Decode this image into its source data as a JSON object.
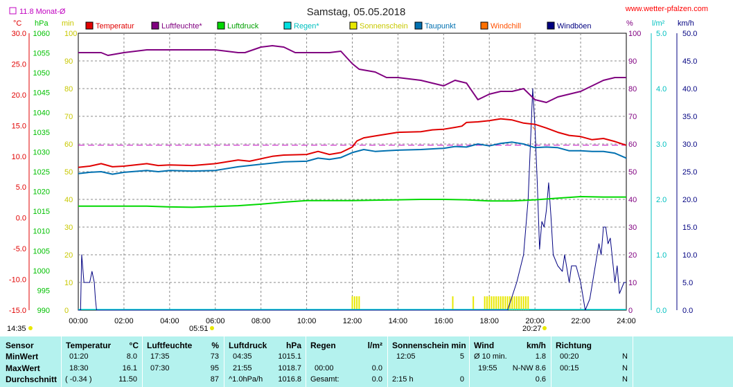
{
  "header": {
    "title": "Samstag, 05.05.2018",
    "website": "www.wetter-pfalzen.com",
    "month_avg": "11.8 Monat-Ø"
  },
  "axis_units": {
    "temperature": "°C",
    "pressure": "hPa",
    "sun": "min",
    "humidity": "%",
    "rain": "l/m²",
    "wind": "km/h"
  },
  "sun_times": {
    "sunrise": "05:51",
    "sunset": "20:27",
    "now": "14:35"
  },
  "colors": {
    "temperature": "#e00000",
    "humidity": "#800080",
    "pressure": "#00d800",
    "rain": "#00e0e0",
    "sunshine": "#e8e800",
    "dewpoint": "#0070b0",
    "windchill": "#ff7000",
    "gusts": "#000080",
    "avg_line": "#c000c0"
  },
  "chart_data": {
    "type": "line",
    "x_ticks": [
      "00:00",
      "02:00",
      "04:00",
      "06:00",
      "08:00",
      "10:00",
      "12:00",
      "14:00",
      "16:00",
      "18:00",
      "20:00",
      "22:00",
      "24:00"
    ],
    "xlim": [
      0,
      24
    ],
    "axes": {
      "temperature": {
        "unit": "°C",
        "ylim": [
          -15,
          30
        ],
        "ticks": [
          "30.0",
          "25.0",
          "20.0",
          "15.0",
          "10.0",
          "5.0",
          "0.0",
          "-5.0",
          "-10.0",
          "-15.0"
        ]
      },
      "pressure": {
        "unit": "hPa",
        "ylim": [
          990,
          1060
        ],
        "ticks": [
          "1060",
          "1055",
          "1050",
          "1045",
          "1040",
          "1035",
          "1030",
          "1025",
          "1020",
          "1015",
          "1010",
          "1005",
          "1000",
          "995",
          "990"
        ]
      },
      "sun": {
        "unit": "min",
        "ylim": [
          0,
          100
        ],
        "ticks": [
          "100",
          "90",
          "80",
          "70",
          "60",
          "50",
          "40",
          "30",
          "20",
          "10",
          "0"
        ]
      },
      "humidity": {
        "unit": "%",
        "ylim": [
          0,
          100
        ],
        "ticks": [
          "100",
          "90",
          "80",
          "70",
          "60",
          "50",
          "40",
          "30",
          "20",
          "10",
          "0"
        ]
      },
      "rain": {
        "unit": "l/m²",
        "ylim": [
          0,
          5
        ],
        "ticks": [
          "5.0",
          "4.0",
          "3.0",
          "2.0",
          "1.0",
          "0.0"
        ]
      },
      "wind": {
        "unit": "km/h",
        "ylim": [
          0,
          50
        ],
        "ticks": [
          "50.0",
          "45.0",
          "40.0",
          "35.0",
          "30.0",
          "25.0",
          "20.0",
          "15.0",
          "10.0",
          "5.0",
          "0.0"
        ]
      }
    },
    "legend": [
      "Temperatur",
      "Luftfeuchte*",
      "Luftdruck",
      "Regen*",
      "Sonnenschein",
      "Taupunkt",
      "Windchill",
      "Windböen"
    ],
    "month_avg_temperature": 11.8,
    "series": [
      {
        "name": "Temperatur",
        "axis": "temperature",
        "x": [
          0,
          0.5,
          1,
          1.5,
          2,
          3,
          3.5,
          4,
          5,
          6,
          7,
          7.5,
          8,
          8.5,
          9,
          10,
          10.5,
          11,
          11.5,
          12,
          12.2,
          12.5,
          13,
          13.5,
          14,
          15,
          15.5,
          16,
          16.5,
          16.8,
          17,
          17.5,
          18,
          18.5,
          19,
          19.5,
          20,
          20.5,
          21,
          21.5,
          22,
          22.5,
          23,
          23.5,
          24
        ],
        "y": [
          8.2,
          8.4,
          8.8,
          8.3,
          8.4,
          8.8,
          8.5,
          8.6,
          8.5,
          8.8,
          9.4,
          9.2,
          9.6,
          10.0,
          10.2,
          10.3,
          10.8,
          10.3,
          10.6,
          11.5,
          12.5,
          13.0,
          13.3,
          13.6,
          13.9,
          14.0,
          14.3,
          14.4,
          14.7,
          14.9,
          15.5,
          15.6,
          15.8,
          16.1,
          15.9,
          15.4,
          15.2,
          14.6,
          13.9,
          13.4,
          13.2,
          12.7,
          12.9,
          12.4,
          11.8
        ]
      },
      {
        "name": "Luftfeuchte*",
        "axis": "humidity",
        "x": [
          0,
          1,
          1.3,
          2,
          3,
          4,
          5,
          6,
          7,
          7.3,
          8,
          8.5,
          9,
          9.5,
          10,
          11,
          11.5,
          12,
          12.3,
          13,
          13.5,
          14,
          15,
          16,
          16.5,
          17,
          17.5,
          18,
          18.5,
          19,
          19.5,
          20,
          20.5,
          21,
          21.5,
          22,
          22.5,
          23,
          23.5,
          24
        ],
        "y": [
          93,
          93,
          92,
          93,
          94,
          94,
          94,
          94,
          93,
          93,
          95,
          95.5,
          95,
          93,
          93,
          93,
          93.5,
          89,
          87,
          86,
          84,
          84,
          83,
          81,
          83,
          82,
          76,
          78,
          79,
          79,
          80,
          76,
          75,
          77,
          78,
          79,
          81,
          83,
          84,
          84
        ]
      },
      {
        "name": "Luftdruck",
        "axis": "pressure",
        "x": [
          0,
          1,
          2,
          3,
          4,
          5,
          6,
          7,
          8,
          9,
          10,
          11,
          12,
          13,
          14,
          15,
          16,
          17,
          18,
          19,
          20,
          21,
          22,
          23,
          24
        ],
        "y": [
          1016.3,
          1016.3,
          1016.3,
          1016.3,
          1016.1,
          1016.0,
          1016.2,
          1016.4,
          1016.8,
          1017.3,
          1017.7,
          1017.7,
          1017.7,
          1017.8,
          1017.9,
          1018.0,
          1018.0,
          1017.9,
          1017.6,
          1017.6,
          1017.9,
          1018.3,
          1018.7,
          1018.6,
          1018.6
        ]
      },
      {
        "name": "Taupunkt",
        "axis": "temperature",
        "x": [
          0,
          0.5,
          1,
          1.5,
          2,
          3,
          3.5,
          4,
          5,
          6,
          7,
          8,
          9,
          10,
          10.5,
          11,
          11.5,
          12,
          12.5,
          13,
          13.5,
          14,
          15,
          16,
          16.5,
          17,
          17.5,
          18,
          18.5,
          19,
          19.5,
          20,
          20.5,
          21,
          21.5,
          22,
          22.5,
          23,
          23.5,
          24
        ],
        "y": [
          7.2,
          7.4,
          7.5,
          7.1,
          7.4,
          7.7,
          7.5,
          7.7,
          7.6,
          7.7,
          8.3,
          8.7,
          9.1,
          9.2,
          9.7,
          9.5,
          9.8,
          10.6,
          11.1,
          10.8,
          10.9,
          11.0,
          11.1,
          11.3,
          11.6,
          11.5,
          12.0,
          11.7,
          12.1,
          12.3,
          12.0,
          11.4,
          11.5,
          11.4,
          10.9,
          10.9,
          10.8,
          10.8,
          10.5,
          9.7
        ]
      },
      {
        "name": "Windchill",
        "axis": "temperature",
        "x": [
          19.9,
          20.0
        ],
        "y": [
          14.8,
          14.3
        ]
      },
      {
        "name": "Windböen",
        "axis": "wind",
        "x": [
          0,
          0.1,
          0.15,
          0.25,
          0.35,
          0.5,
          0.6,
          0.7,
          0.75,
          0.8,
          18.8,
          19.2,
          19.5,
          19.7,
          19.8,
          19.9,
          20.0,
          20.1,
          20.2,
          20.3,
          20.4,
          20.5,
          20.6,
          20.7,
          20.8,
          21.0,
          21.2,
          21.3,
          21.5,
          21.6,
          21.8,
          22.0,
          22.2,
          22.4,
          22.6,
          22.8,
          22.9,
          23.0,
          23.1,
          23.2,
          23.3,
          23.4,
          23.5,
          23.6,
          23.7,
          23.9,
          24
        ],
        "y": [
          0,
          0,
          10,
          5,
          5,
          5,
          7,
          5,
          2,
          0,
          0,
          5,
          10,
          20,
          30,
          40,
          33,
          23,
          11,
          16,
          15,
          18,
          23,
          17,
          10,
          8,
          7,
          10,
          5,
          8,
          8,
          5,
          0,
          2,
          7,
          12,
          10,
          15,
          15,
          12,
          13,
          9,
          5,
          8,
          3,
          5,
          5
        ]
      }
    ],
    "sunshine_bars": {
      "axis": "sun",
      "x": [
        12.0,
        12.1,
        12.2,
        12.3,
        16.4,
        17.3,
        17.8,
        17.9,
        18.0,
        18.1,
        18.2,
        18.3,
        18.4,
        18.5,
        18.6,
        18.7,
        18.8,
        18.9,
        19.0,
        19.1,
        19.2,
        19.3,
        19.4,
        19.5,
        19.6,
        19.7
      ],
      "y": [
        5,
        5,
        5,
        5,
        5,
        5,
        5,
        5,
        5,
        5,
        5,
        5,
        5,
        5,
        5,
        5,
        5,
        5,
        5,
        5,
        5,
        5,
        5,
        5,
        5,
        5
      ]
    }
  },
  "stats": {
    "headers": {
      "sensor": "Sensor",
      "temp": "Temperatur",
      "temp_unit": "°C",
      "hum": "Luftfeuchte",
      "hum_unit": "%",
      "press": "Luftdruck",
      "press_unit": "hPa",
      "rain": "Regen",
      "rain_unit": "l/m²",
      "sun": "Sonnenschein min",
      "wind": "Wind",
      "wind_unit": "km/h",
      "dir": "Richtung"
    },
    "row_labels": [
      "MinWert",
      "MaxWert",
      "Durchschnitt"
    ],
    "temp": [
      [
        "01:20",
        "8.0"
      ],
      [
        "18:30",
        "16.1"
      ],
      [
        "( -0.34 )",
        "11.50"
      ]
    ],
    "hum": [
      [
        "17:35",
        "73"
      ],
      [
        "07:30",
        "95"
      ],
      [
        "",
        "87"
      ]
    ],
    "press": [
      [
        "04:35",
        "1015.1"
      ],
      [
        "21:55",
        "1018.7"
      ],
      [
        "^1.0hPa/h",
        "1016.8"
      ]
    ],
    "rain": [
      [
        "",
        ""
      ],
      [
        "00:00",
        "0.0"
      ],
      [
        "Gesamt:",
        "0.0"
      ]
    ],
    "sun": [
      [
        "12:05",
        "5"
      ],
      [
        "",
        ""
      ],
      [
        "2:15 h",
        "0"
      ]
    ],
    "wind": [
      [
        "Ø 10 min.",
        "1.8"
      ],
      [
        "19:55",
        "N-NW 8.6"
      ],
      [
        "",
        "0.6"
      ]
    ],
    "dir": [
      [
        "00:20",
        "N"
      ],
      [
        "00:15",
        "N"
      ],
      [
        "",
        "N"
      ]
    ]
  }
}
